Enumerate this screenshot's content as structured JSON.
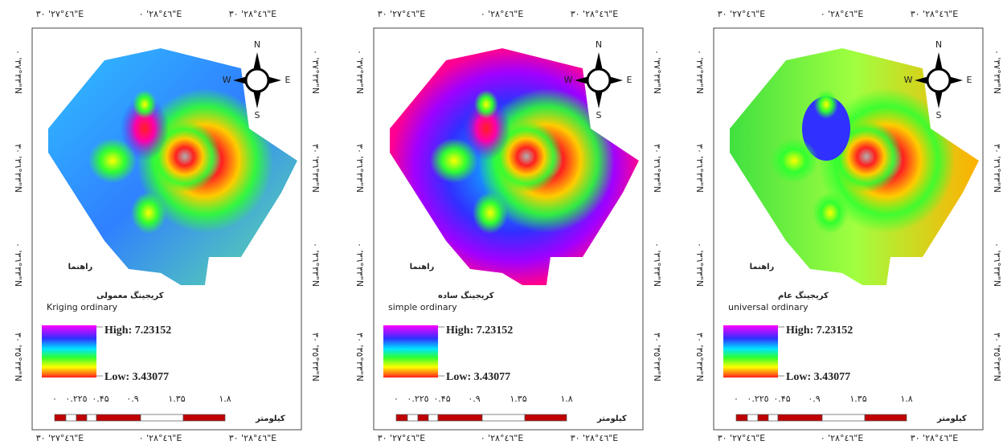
{
  "panels": [
    {
      "top_labels": [
        "٤٦°٢٧' ٣٠\"E",
        "٤٦°٢٨' ٠\"E",
        "٤٦°٢٨' ٣٠\"E"
      ],
      "bottom_labels": [
        "٤٦°٢٧' ٣٠\"E",
        "٤٦°٢٨' ٠\"E",
        "٤٦°٢٨' ٣٠\"E"
      ],
      "left_labels": [
        "٣٣°٣٧' ٠\"N",
        "٣٣°٣٦' ٣٠\"N",
        "٣٣°٣٦' ٠\"N",
        "٣٣°٣٥' ٣٠\"N"
      ],
      "right_labels": [
        "٣٣°٣٧' ٠\"N",
        "٣٣°٣٦' ٣٠\"N",
        "٣٣°٣٦' ٠\"N",
        "٣٣°٣٥' ٣٠\"N"
      ],
      "compass": {
        "n": "N",
        "w": "W",
        "e": "E",
        "s": "S"
      },
      "legend_title": "راهنما",
      "method_fa": "کریجینگ معمولی",
      "method_en": "Kriging ordinary",
      "high": "High: 7.23152",
      "low": "Low: 3.43077",
      "scale_labels": [
        "٠",
        "٠.٢٢٥",
        "٠.۴۵",
        "٠.٩",
        "١.٣۵",
        "١.٨"
      ],
      "scale_unit": "کیلومتر"
    },
    {
      "top_labels": [
        "٤٦°٢٧' ٣٠\"E",
        "٤٦°٢٨' ٠\"E",
        "٤٦°٢٨' ٣٠\"E"
      ],
      "bottom_labels": [
        "٤٦°٢٧' ٣٠\"E",
        "٤٦°٢٨' ٠\"E",
        "٤٦°٢٨' ٣٠\"E"
      ],
      "left_labels": [
        "٣٣°٣٧' ٠\"N",
        "٣٣°٣٦' ٣٠\"N",
        "٣٣°٣٦' ٠\"N",
        "٣٣°٣٥' ٣٠\"N"
      ],
      "right_labels": [
        "٣٣°٣٧' ٠\"N",
        "٣٣°٣٦' ٣٠\"N",
        "٣٣°٣٦' ٠\"N",
        "٣٣°٣٥' ٣٠\"N"
      ],
      "compass": {
        "n": "N",
        "w": "W",
        "e": "E",
        "s": "S"
      },
      "legend_title": "راهنما",
      "method_fa": "کریجینگ ساده",
      "method_en": "simple ordinary",
      "high": "High: 7.23152",
      "low": "Low: 3.43077",
      "scale_labels": [
        "٠",
        "٠.٢٢٥",
        "٠.۴۵",
        "٠.٩",
        "١.٣۵",
        "١.٨"
      ],
      "scale_unit": "کیلومتر"
    },
    {
      "top_labels": [
        "٤٦°٢٧' ٣٠\"E",
        "٤٦°٢٨' ٠\"E",
        "٤٦°٢٨' ٣٠\"E"
      ],
      "bottom_labels": [
        "٤٦°٢٧' ٣٠\"E",
        "٤٦°٢٨' ٠\"E",
        "٤٦°٢٨' ٣٠\"E"
      ],
      "left_labels": [
        "٣٣°٣٧' ٠\"N",
        "٣٣°٣٦' ٣٠\"N",
        "٣٣°٣٦' ٠\"N",
        "٣٣°٣٥' ٣٠\"N"
      ],
      "right_labels": [
        "٣٣°٣٧' ٠\"N",
        "٣٣°٣٦' ٣٠\"N",
        "٣٣°٣٦' ٠\"N",
        "٣٣°٣٥' ٣٠\"N"
      ],
      "compass": {
        "n": "N",
        "w": "W",
        "e": "E",
        "s": "S"
      },
      "legend_title": "راهنما",
      "method_fa": "کریجینگ عام",
      "method_en": "universal ordinary",
      "high": "High: 7.23152",
      "low": "Low: 3.43077",
      "scale_labels": [
        "٠",
        "٠.٢٢٥",
        "٠.۴۵",
        "٠.٩",
        "١.٣۵",
        "١.٨"
      ],
      "scale_unit": "کیلومتر"
    }
  ]
}
